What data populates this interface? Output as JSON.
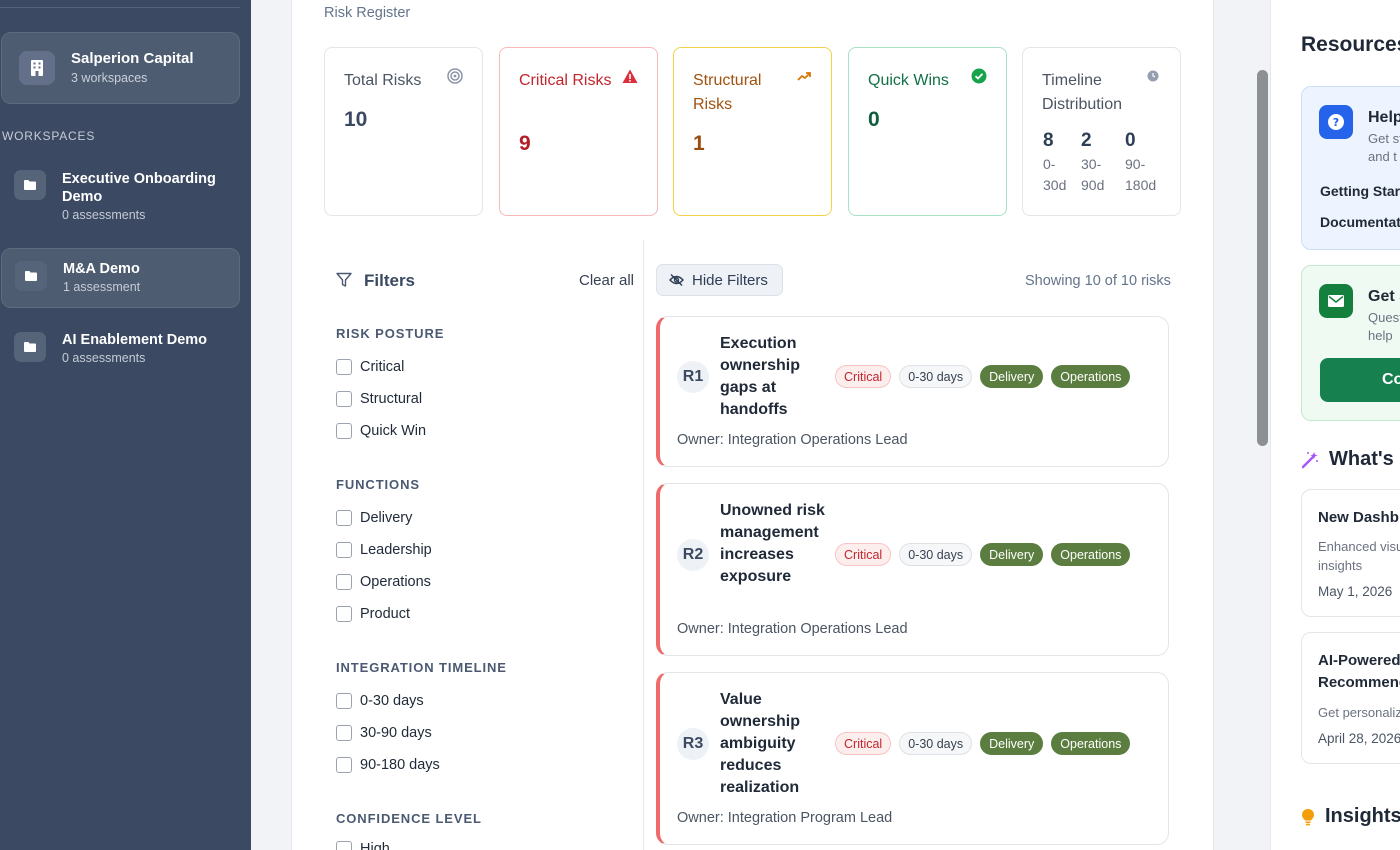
{
  "sidebar": {
    "org": {
      "name": "Salperion Capital",
      "sub": "3 workspaces"
    },
    "workspaces_heading": "WORKSPACES",
    "workspaces": [
      {
        "name": "Executive Onboarding Demo",
        "sub": "0 assessments"
      },
      {
        "name": "M&A Demo",
        "sub": "1 assessment"
      },
      {
        "name": "AI Enablement Demo",
        "sub": "0 assessments"
      }
    ]
  },
  "main": {
    "breadcrumb": "Risk Register",
    "stats": {
      "total": {
        "label": "Total Risks",
        "value": "10"
      },
      "critical": {
        "label": "Critical Risks",
        "value": "9"
      },
      "structural": {
        "label": "Structural Risks",
        "value": "1"
      },
      "quick": {
        "label": "Quick Wins",
        "value": "0"
      },
      "timeline": {
        "label": "Timeline Distribution",
        "cols": [
          {
            "value": "8",
            "label": "0-30d"
          },
          {
            "value": "2",
            "label": "30-90d"
          },
          {
            "value": "0",
            "label": "90-180d"
          }
        ]
      }
    },
    "colors": {
      "critical": "#c0262d",
      "structural": "#a0520f",
      "quick": "#127046",
      "accent": "#3b4a62",
      "function_tag": "#5b7d3f"
    }
  },
  "filters": {
    "title": "Filters",
    "clear_all": "Clear all",
    "sections": [
      {
        "heading": "RISK POSTURE",
        "options": [
          "Critical",
          "Structural",
          "Quick Win"
        ]
      },
      {
        "heading": "FUNCTIONS",
        "options": [
          "Delivery",
          "Leadership",
          "Operations",
          "Product"
        ]
      },
      {
        "heading": "INTEGRATION TIMELINE",
        "options": [
          "0-30 days",
          "30-90 days",
          "90-180 days"
        ]
      },
      {
        "heading": "CONFIDENCE LEVEL",
        "options": [
          "High"
        ]
      }
    ]
  },
  "risks": {
    "hide_filters": "Hide Filters",
    "showing": "Showing 10 of 10 risks",
    "items": [
      {
        "id": "R1",
        "title": "Execution ownership gaps at handoffs",
        "posture": "Critical",
        "timeline": "0-30 days",
        "functions": [
          "Delivery",
          "Operations"
        ],
        "owner": "Owner: Integration Operations Lead"
      },
      {
        "id": "R2",
        "title": "Unowned risk management increases exposure",
        "posture": "Critical",
        "timeline": "0-30 days",
        "functions": [
          "Delivery",
          "Operations"
        ],
        "owner": "Owner: Integration Operations Lead"
      },
      {
        "id": "R3",
        "title": "Value ownership ambiguity reduces realization",
        "posture": "Critical",
        "timeline": "0-30 days",
        "functions": [
          "Delivery",
          "Operations"
        ],
        "owner": "Owner: Integration Program Lead"
      }
    ]
  },
  "right_panel": {
    "title": "Resources",
    "help": {
      "title": "Help",
      "sub1": "Get st",
      "sub2": "and t",
      "link1": "Getting Star",
      "link2": "Documentat"
    },
    "contact": {
      "title": "Get S",
      "sub1": "Quest",
      "sub2": "help",
      "button": "Co"
    },
    "whats_new": {
      "heading": "What's N",
      "items": [
        {
          "title": "New Dashb",
          "desc1": "Enhanced visu",
          "desc2": "insights",
          "date": "May 1, 2026"
        },
        {
          "title1": "AI-Powered",
          "title2": "Recommend",
          "desc1": "Get personaliz",
          "date": "April 28, 2026"
        }
      ]
    },
    "insights": {
      "heading": "Insights"
    }
  }
}
